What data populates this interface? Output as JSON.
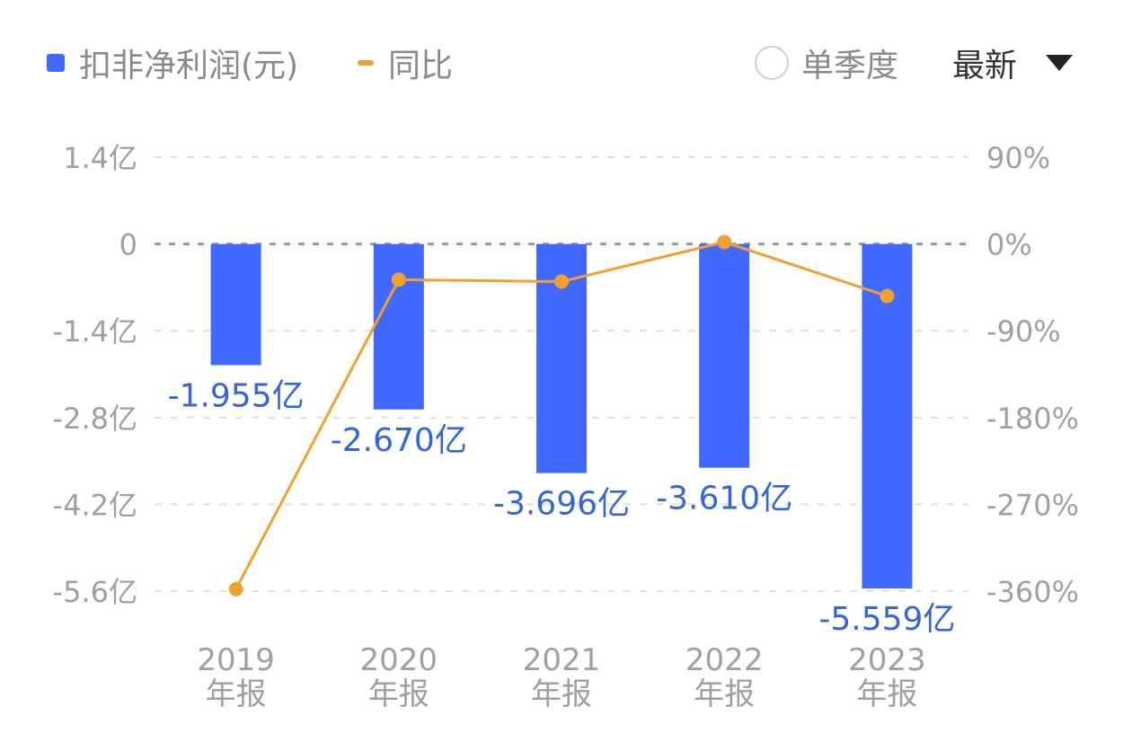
{
  "legend": {
    "items": [
      {
        "label": "扣非净利润(元)",
        "color": "#4169ff",
        "shape": "square"
      },
      {
        "label": "同比",
        "color": "#f0a030",
        "shape": "dash"
      }
    ]
  },
  "controls": {
    "quarterly_label": "单季度",
    "quarterly_checked": false,
    "sort_label": "最新",
    "dropdown_icon": "triangle-down"
  },
  "colors": {
    "bar": "#4169ff",
    "bar_label": "#3366dd",
    "line": "#f0a030",
    "axis_text": "#a0a0a0",
    "grid": "#e0e0e0",
    "zero_line": "#9a9a9a"
  },
  "chart_data": {
    "type": "bar",
    "categories": [
      {
        "year": "2019",
        "period": "年报"
      },
      {
        "year": "2020",
        "period": "年报"
      },
      {
        "year": "2021",
        "period": "年报"
      },
      {
        "year": "2022",
        "period": "年报"
      },
      {
        "year": "2023",
        "period": "年报"
      }
    ],
    "series": [
      {
        "name": "扣非净利润(元)",
        "type": "bar",
        "axis": "left",
        "values": [
          -1.955,
          -2.67,
          -3.696,
          -3.61,
          -5.559
        ],
        "labels": [
          "-1.955亿",
          "-2.670亿",
          "-3.696亿",
          "-3.610亿",
          "-5.559亿"
        ]
      },
      {
        "name": "同比",
        "type": "line",
        "axis": "right",
        "values": [
          -358,
          -37,
          -39,
          2,
          -54
        ]
      }
    ],
    "left_axis": {
      "ticks": [
        1.4,
        0,
        -1.4,
        -2.8,
        -4.2,
        -5.6
      ],
      "tick_labels": [
        "1.4亿",
        "0",
        "-1.4亿",
        "-2.8亿",
        "-4.2亿",
        "-5.6亿"
      ],
      "range": [
        -5.6,
        1.4
      ]
    },
    "right_axis": {
      "ticks": [
        90,
        0,
        -90,
        -180,
        -270,
        -360
      ],
      "tick_labels": [
        "90%",
        "0%",
        "-90%",
        "-180%",
        "-270%",
        "-360%"
      ],
      "range": [
        -360,
        90
      ]
    },
    "grid": true
  }
}
